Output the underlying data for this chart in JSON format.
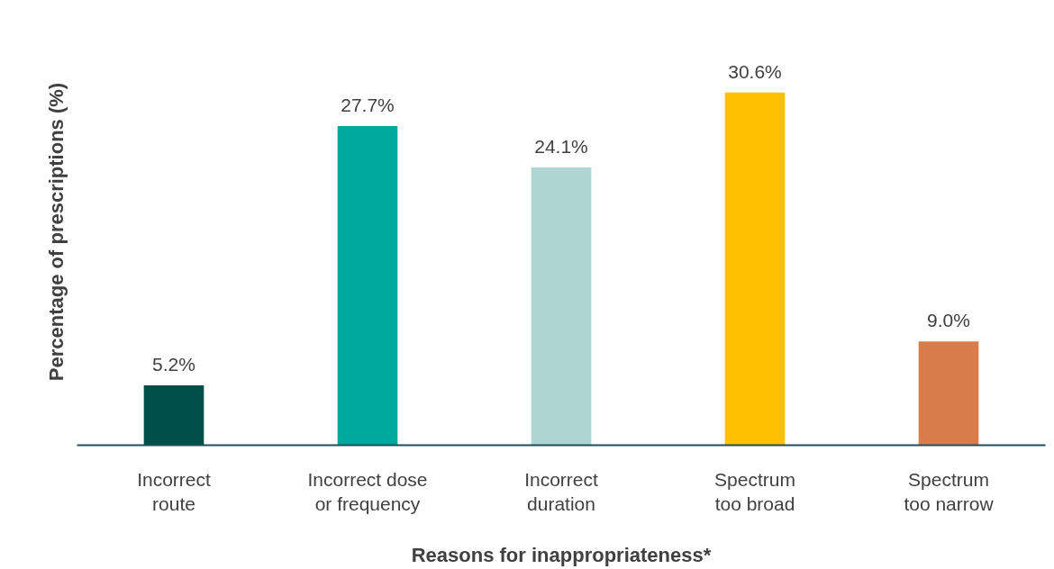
{
  "chart_data": {
    "type": "bar",
    "xlabel": "Reasons for inappropriateness*",
    "ylabel": "Percentage of prescriptions (%)",
    "categories": [
      "Incorrect\nroute",
      "Incorrect dose\nor frequency",
      "Incorrect\nduration",
      "Spectrum\ntoo broad",
      "Spectrum\ntoo narrow"
    ],
    "values": [
      5.2,
      27.7,
      24.1,
      30.6,
      9.0
    ],
    "colors": [
      "#005049",
      "#00a99d",
      "#aed5d2",
      "#ffc000",
      "#d97c4c"
    ],
    "value_labels": [
      "5.2%",
      "27.7%",
      "24.1%",
      "30.6%",
      "9.0%"
    ],
    "tick_labels": "x",
    "grid": false
  }
}
